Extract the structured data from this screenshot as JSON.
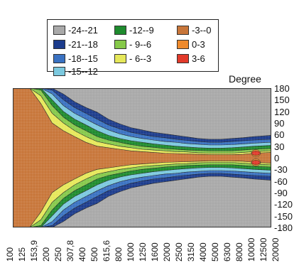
{
  "chart_data": {
    "type": "heatmap",
    "title": "",
    "xlabel": "",
    "ylabel": "Degree",
    "legend_placement": "top-left",
    "x_categories": [
      "100",
      "125",
      "153,9",
      "200",
      "250",
      "307,8",
      "400",
      "500",
      "615,6",
      "800",
      "1000",
      "1250",
      "1600",
      "2000",
      "2500",
      "3150",
      "4000",
      "5000",
      "6300",
      "8000",
      "10000",
      "12500",
      "20000"
    ],
    "y_ticks": [
      180,
      150,
      120,
      90,
      60,
      30,
      0,
      -30,
      -60,
      -90,
      -120,
      -150,
      -180
    ],
    "ylim": [
      -180,
      180
    ],
    "levels": [
      {
        "label": "-24--21",
        "color": "#a9a9a9"
      },
      {
        "label": "-21--18",
        "color": "#1c3c8c"
      },
      {
        "label": "-18--15",
        "color": "#3a72c2"
      },
      {
        "label": "-15--12",
        "color": "#7cc9df"
      },
      {
        "label": "-12--9",
        "color": "#1e8b2e"
      },
      {
        "label": "- 9--6",
        "color": "#86c94a"
      },
      {
        "label": "- 6--3",
        "color": "#e6e85a"
      },
      {
        "label": "-3--0",
        "color": "#c8763a"
      },
      {
        "label": "0-3",
        "color": "#ef8a2c"
      },
      {
        "label": "3-6",
        "color": "#e23a2a"
      }
    ],
    "contour_half_widths_deg": {
      "columns": [
        "100",
        "125",
        "153,9",
        "200",
        "250",
        "307,8",
        "400",
        "500",
        "615,6",
        "800",
        "1000",
        "1250",
        "1600",
        "2000",
        "2500",
        "3150",
        "4000",
        "5000",
        "6300",
        "8000",
        "10000",
        "12500",
        "20000"
      ],
      "level_-3--0": [
        180,
        180,
        140,
        90,
        70,
        55,
        40,
        30,
        26,
        22,
        18,
        16,
        14,
        12,
        11,
        10,
        9,
        8,
        8,
        8,
        9,
        12,
        14
      ],
      "level_-6--3": [
        180,
        180,
        160,
        115,
        90,
        70,
        55,
        42,
        36,
        30,
        26,
        22,
        20,
        18,
        16,
        15,
        13,
        12,
        12,
        12,
        14,
        16,
        18
      ],
      "level_-9--6": [
        180,
        180,
        175,
        135,
        105,
        85,
        70,
        55,
        46,
        40,
        34,
        30,
        27,
        24,
        22,
        20,
        19,
        18,
        18,
        18,
        20,
        22,
        24
      ],
      "level_-12--9": [
        180,
        180,
        180,
        150,
        120,
        100,
        85,
        70,
        58,
        50,
        44,
        40,
        36,
        33,
        30,
        28,
        26,
        25,
        25,
        26,
        28,
        30,
        32
      ],
      "level_-15--12": [
        180,
        180,
        180,
        165,
        135,
        115,
        100,
        85,
        72,
        62,
        55,
        50,
        46,
        42,
        40,
        37,
        35,
        33,
        33,
        34,
        36,
        38,
        40
      ],
      "level_-18--15": [
        180,
        180,
        180,
        175,
        150,
        130,
        115,
        100,
        85,
        75,
        66,
        60,
        55,
        52,
        48,
        45,
        42,
        40,
        40,
        42,
        44,
        46,
        48
      ],
      "level_-21--18": [
        180,
        180,
        180,
        180,
        165,
        145,
        130,
        118,
        100,
        88,
        78,
        72,
        66,
        62,
        58,
        54,
        50,
        48,
        48,
        50,
        52,
        55,
        58
      ]
    }
  }
}
